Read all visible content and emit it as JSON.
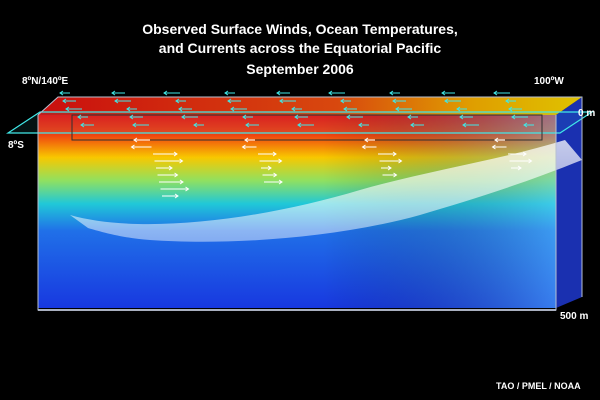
{
  "title_line1": "Observed Surface Winds, Ocean Temperatures,",
  "title_line2": "and Currents across the Equatorial Pacific",
  "title_line3": "September 2006",
  "label_nw": "8ºN/140ºE",
  "label_ne": "100ºW",
  "label_sw": "8ºS",
  "label_surface": "0 m",
  "label_bottom": "500 m",
  "credit": "TAO / PMEL / NOAA",
  "colors": {
    "warm": "#e81010",
    "mid": "#f8c800",
    "cool": "#2040e0",
    "wind_vector": "#40e8e8",
    "current_vector": "#ffffff"
  }
}
